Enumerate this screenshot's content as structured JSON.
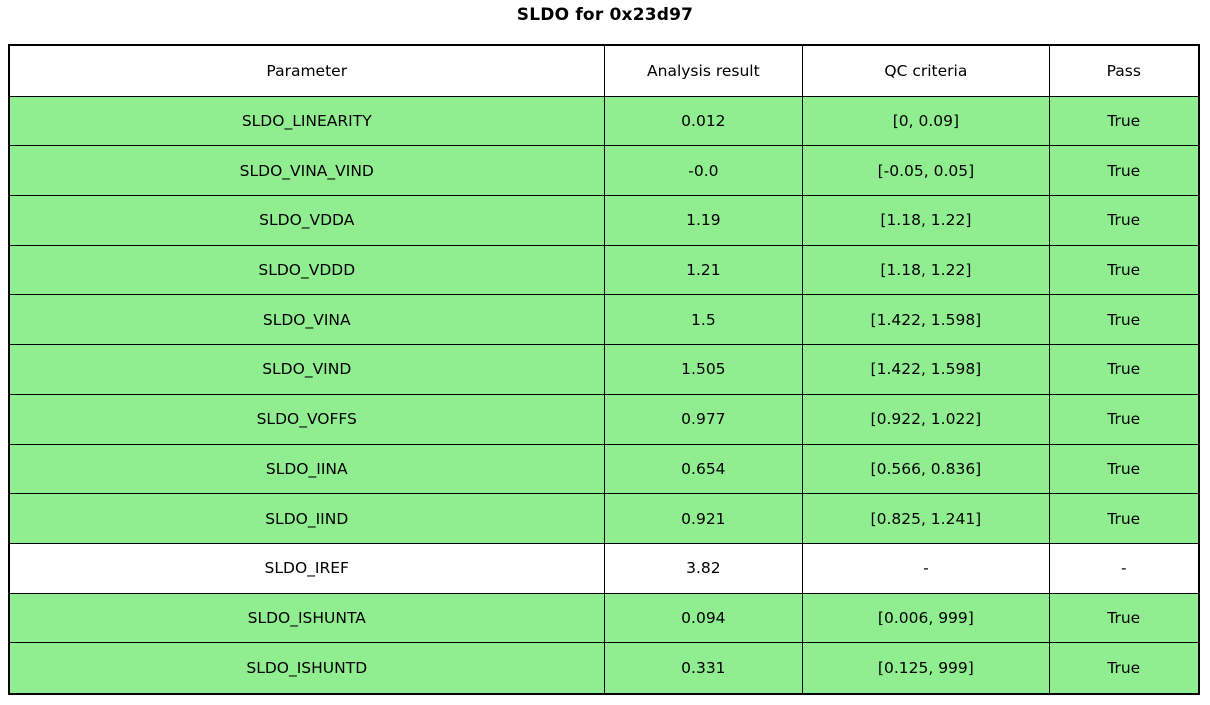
{
  "title": "SLDO for 0x23d97",
  "colors": {
    "pass_row": "#90EE90",
    "neutral_row": "#ffffff",
    "border": "#000000",
    "text": "#000000"
  },
  "table": {
    "columns": [
      "Parameter",
      "Analysis result",
      "QC criteria",
      "Pass"
    ],
    "rows": [
      {
        "parameter": "SLDO_LINEARITY",
        "result": "0.012",
        "criteria": "[0, 0.09]",
        "pass": "True",
        "highlight": true
      },
      {
        "parameter": "SLDO_VINA_VIND",
        "result": "-0.0",
        "criteria": "[-0.05, 0.05]",
        "pass": "True",
        "highlight": true
      },
      {
        "parameter": "SLDO_VDDA",
        "result": "1.19",
        "criteria": "[1.18, 1.22]",
        "pass": "True",
        "highlight": true
      },
      {
        "parameter": "SLDO_VDDD",
        "result": "1.21",
        "criteria": "[1.18, 1.22]",
        "pass": "True",
        "highlight": true
      },
      {
        "parameter": "SLDO_VINA",
        "result": "1.5",
        "criteria": "[1.422, 1.598]",
        "pass": "True",
        "highlight": true
      },
      {
        "parameter": "SLDO_VIND",
        "result": "1.505",
        "criteria": "[1.422, 1.598]",
        "pass": "True",
        "highlight": true
      },
      {
        "parameter": "SLDO_VOFFS",
        "result": "0.977",
        "criteria": "[0.922, 1.022]",
        "pass": "True",
        "highlight": true
      },
      {
        "parameter": "SLDO_IINA",
        "result": "0.654",
        "criteria": "[0.566, 0.836]",
        "pass": "True",
        "highlight": true
      },
      {
        "parameter": "SLDO_IIND",
        "result": "0.921",
        "criteria": "[0.825, 1.241]",
        "pass": "True",
        "highlight": true
      },
      {
        "parameter": "SLDO_IREF",
        "result": "3.82",
        "criteria": "-",
        "pass": "-",
        "highlight": false
      },
      {
        "parameter": "SLDO_ISHUNTA",
        "result": "0.094",
        "criteria": "[0.006, 999]",
        "pass": "True",
        "highlight": true
      },
      {
        "parameter": "SLDO_ISHUNTD",
        "result": "0.331",
        "criteria": "[0.125, 999]",
        "pass": "True",
        "highlight": true
      }
    ]
  },
  "chart_data": {
    "type": "table",
    "title": "SLDO for 0x23d97",
    "columns": [
      "Parameter",
      "Analysis result",
      "QC criteria",
      "Pass"
    ],
    "rows": [
      [
        "SLDO_LINEARITY",
        "0.012",
        "[0, 0.09]",
        "True"
      ],
      [
        "SLDO_VINA_VIND",
        "-0.0",
        "[-0.05, 0.05]",
        "True"
      ],
      [
        "SLDO_VDDA",
        "1.19",
        "[1.18, 1.22]",
        "True"
      ],
      [
        "SLDO_VDDD",
        "1.21",
        "[1.18, 1.22]",
        "True"
      ],
      [
        "SLDO_VINA",
        "1.5",
        "[1.422, 1.598]",
        "True"
      ],
      [
        "SLDO_VIND",
        "1.505",
        "[1.422, 1.598]",
        "True"
      ],
      [
        "SLDO_VOFFS",
        "0.977",
        "[0.922, 1.022]",
        "True"
      ],
      [
        "SLDO_IINA",
        "0.654",
        "[0.566, 0.836]",
        "True"
      ],
      [
        "SLDO_IIND",
        "0.921",
        "[0.825, 1.241]",
        "True"
      ],
      [
        "SLDO_IREF",
        "3.82",
        "-",
        "-"
      ],
      [
        "SLDO_ISHUNTA",
        "0.094",
        "[0.006, 999]",
        "True"
      ],
      [
        "SLDO_ISHUNTD",
        "0.331",
        "[0.125, 999]",
        "True"
      ]
    ],
    "row_colors": [
      "#90EE90",
      "#90EE90",
      "#90EE90",
      "#90EE90",
      "#90EE90",
      "#90EE90",
      "#90EE90",
      "#90EE90",
      "#90EE90",
      "#ffffff",
      "#90EE90",
      "#90EE90"
    ],
    "legend_position": "none",
    "grid": true
  }
}
